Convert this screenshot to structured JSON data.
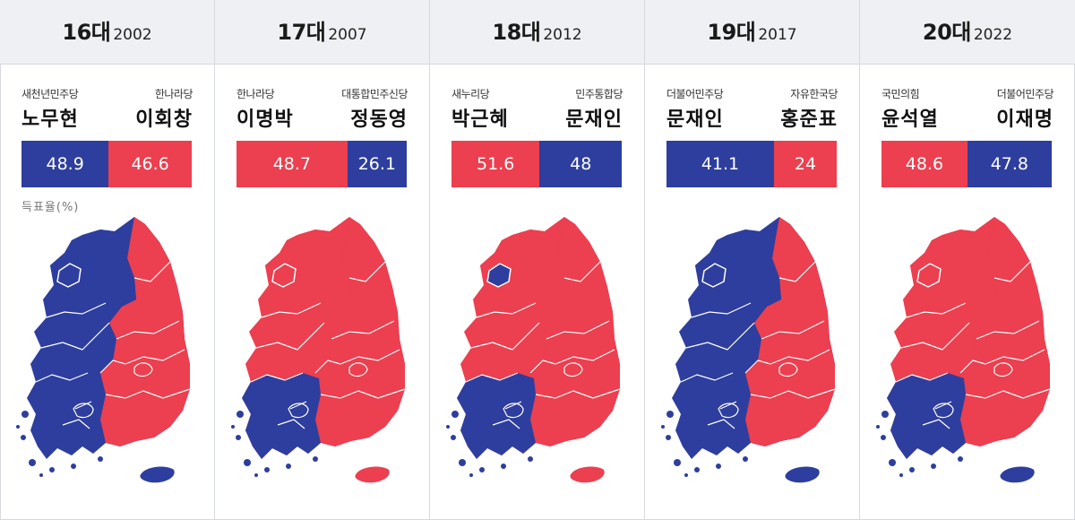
{
  "colors": {
    "democratic_blue": "#2d3e9e",
    "conservative_red": "#ec3f4f",
    "header_bg": "#eef0f3"
  },
  "caption": "득표율(%)",
  "chart_data": {
    "type": "bar",
    "title": "",
    "unit": "득표율(%)",
    "elections": [
      {
        "term": "16대",
        "year": "2002",
        "left": {
          "party": "새천년민주당",
          "name": "노무현",
          "value": 48.9,
          "color": "#2d3e9e"
        },
        "right": {
          "party": "한나라당",
          "name": "이회창",
          "value": 46.6,
          "color": "#ec3f4f"
        },
        "map": {
          "base": "blue",
          "east": "red",
          "north": "blue",
          "capital": "blue",
          "jeju": "blue"
        }
      },
      {
        "term": "17대",
        "year": "2007",
        "left": {
          "party": "한나라당",
          "name": "이명박",
          "value": 48.7,
          "color": "#ec3f4f"
        },
        "right": {
          "party": "대통합민주신당",
          "name": "정동영",
          "value": 26.1,
          "color": "#2d3e9e"
        },
        "map": {
          "base": "red",
          "east": "red",
          "north": "red",
          "capital": "red",
          "jeju": "red",
          "southwest": "blue"
        }
      },
      {
        "term": "18대",
        "year": "2012",
        "left": {
          "party": "새누리당",
          "name": "박근혜",
          "value": 51.6,
          "color": "#ec3f4f"
        },
        "right": {
          "party": "민주통합당",
          "name": "문재인",
          "value": 48,
          "color": "#2d3e9e"
        },
        "map": {
          "base": "red",
          "east": "red",
          "north": "red",
          "capital": "blue",
          "jeju": "red",
          "southwest": "blue"
        }
      },
      {
        "term": "19대",
        "year": "2017",
        "left": {
          "party": "더불어민주당",
          "name": "문재인",
          "value": 41.1,
          "color": "#2d3e9e"
        },
        "right": {
          "party": "자유한국당",
          "name": "홍준표",
          "value": 24,
          "color": "#ec3f4f"
        },
        "map": {
          "base": "blue",
          "east": "red",
          "north": "blue",
          "capital": "blue",
          "jeju": "blue"
        }
      },
      {
        "term": "20대",
        "year": "2022",
        "left": {
          "party": "국민의힘",
          "name": "윤석열",
          "value": 48.6,
          "color": "#ec3f4f"
        },
        "right": {
          "party": "더불어민주당",
          "name": "이재명",
          "value": 47.8,
          "color": "#2d3e9e"
        },
        "map": {
          "base": "red",
          "east": "red",
          "north": "red",
          "capital": "red",
          "jeju": "blue",
          "southwest": "blue"
        }
      }
    ]
  }
}
